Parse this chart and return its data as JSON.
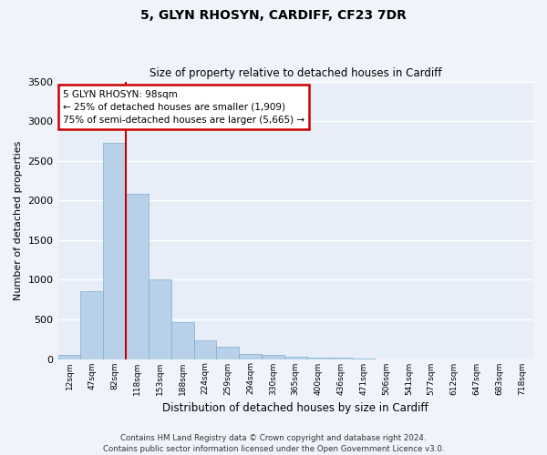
{
  "title": "5, GLYN RHOSYN, CARDIFF, CF23 7DR",
  "subtitle": "Size of property relative to detached houses in Cardiff",
  "xlabel": "Distribution of detached houses by size in Cardiff",
  "ylabel": "Number of detached properties",
  "bar_color": "#b8d0e8",
  "bar_edge_color": "#7aafd4",
  "background_color": "#e8eef8",
  "grid_color": "#ffffff",
  "categories": [
    "12sqm",
    "47sqm",
    "82sqm",
    "118sqm",
    "153sqm",
    "188sqm",
    "224sqm",
    "259sqm",
    "294sqm",
    "330sqm",
    "365sqm",
    "400sqm",
    "436sqm",
    "471sqm",
    "506sqm",
    "541sqm",
    "577sqm",
    "612sqm",
    "647sqm",
    "683sqm",
    "718sqm"
  ],
  "values": [
    55,
    850,
    2730,
    2080,
    1010,
    460,
    240,
    150,
    65,
    55,
    30,
    20,
    15,
    5,
    0,
    0,
    0,
    0,
    0,
    0,
    0
  ],
  "ylim": [
    0,
    3500
  ],
  "yticks": [
    0,
    500,
    1000,
    1500,
    2000,
    2500,
    3000,
    3500
  ],
  "property_line_color": "#cc0000",
  "annotation_line1": "5 GLYN RHOSYN: 98sqm",
  "annotation_line2": "← 25% of detached houses are smaller (1,909)",
  "annotation_line3": "75% of semi-detached houses are larger (5,665) →",
  "annotation_box_color": "#cc0000",
  "annotation_box_bg": "#ffffff",
  "footer_line1": "Contains HM Land Registry data © Crown copyright and database right 2024.",
  "footer_line2": "Contains public sector information licensed under the Open Government Licence v3.0."
}
